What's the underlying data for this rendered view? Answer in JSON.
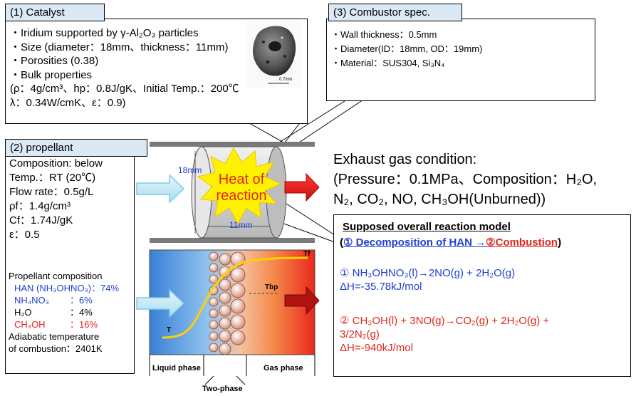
{
  "catalyst": {
    "label": "(1)  Catalyst",
    "lines": [
      "・Iridium supported by γ-Al₂O₃ particles",
      "・Size (diameter：18mm、thickness：11mm)",
      "・Porosities (0.38)",
      "・Bulk properties",
      "(ρ：4g/cm³、hp：0.8J/gK、Initial Temp.：200℃",
      "λ：0.34W/cmK、ε：0.9)"
    ],
    "scale_bar": "0.7mm"
  },
  "combustor": {
    "label": "(3)  Combustor spec.",
    "lines": [
      "・Wall thickness：0.5mm",
      "・Diameter(ID：18mm, OD：19mm)",
      "・Material：SUS304,  Si₃N₄"
    ]
  },
  "propellant": {
    "label": "(2)  propellant",
    "lines": [
      "Composition: below",
      "Temp.：RT (20℃)",
      "Flow rate：0.5g/L",
      "ρf：1.4g/cm³",
      "Cf：1.74J/gK",
      "ε：0.5"
    ],
    "composition_title": "Propellant composition",
    "composition": [
      {
        "name": "HAN (NH₃OHNO₃)：74%",
        "value": "",
        "color": "#1f3fd0"
      },
      {
        "name": "NH₄NO₃",
        "value": "：6%",
        "color": "#1f3fd0"
      },
      {
        "name": "H₂O",
        "value": "：4%",
        "color": "#000000"
      },
      {
        "name": "CH₃OH",
        "value": "：16%",
        "color": "#e0261f"
      }
    ],
    "adiabatic": [
      "Adiabatic temperature",
      "of combustion：2401K"
    ]
  },
  "catalyst_bed": {
    "heat_label": [
      "Heat of",
      "reaction"
    ],
    "dim_diameter": "18mm",
    "dim_length": "11mm"
  },
  "exhaust": {
    "lines": [
      "Exhaust gas condition:",
      "(Pressure：0.1MPa、Composition：H₂O,",
      "N₂, CO₂, NO, CH₃OH(Unburned))"
    ]
  },
  "phase_diagram": {
    "labels": {
      "tf": "Tf",
      "tbp": "Tbp",
      "t": "T"
    },
    "liquid": "Liquid phase",
    "gas": "Gas phase",
    "two_phase": "Two-phase"
  },
  "reaction_model": {
    "title": "Supposed overall reaction model",
    "subtitle_open": "(",
    "subtitle_part1": "① Decomposition of HAN →",
    "subtitle_part2": "②Combustion",
    "subtitle_close": ")",
    "reaction1_eq": "①  NH₃OHNO₃(l)→2NO(g) + 2H₂O(g)",
    "reaction1_dh": "ΔH=-35.78kJ/mol",
    "reaction2_eq": "②  CH₃OH(l) + 3NO(g)→CO₂(g) + 2H₂O(g) +",
    "reaction2_eq2": "3/2N₂(g)",
    "reaction2_dh": "ΔH=-940kJ/mol",
    "colors": {
      "blue": "#1f3fd0",
      "red": "#e0261f"
    }
  }
}
